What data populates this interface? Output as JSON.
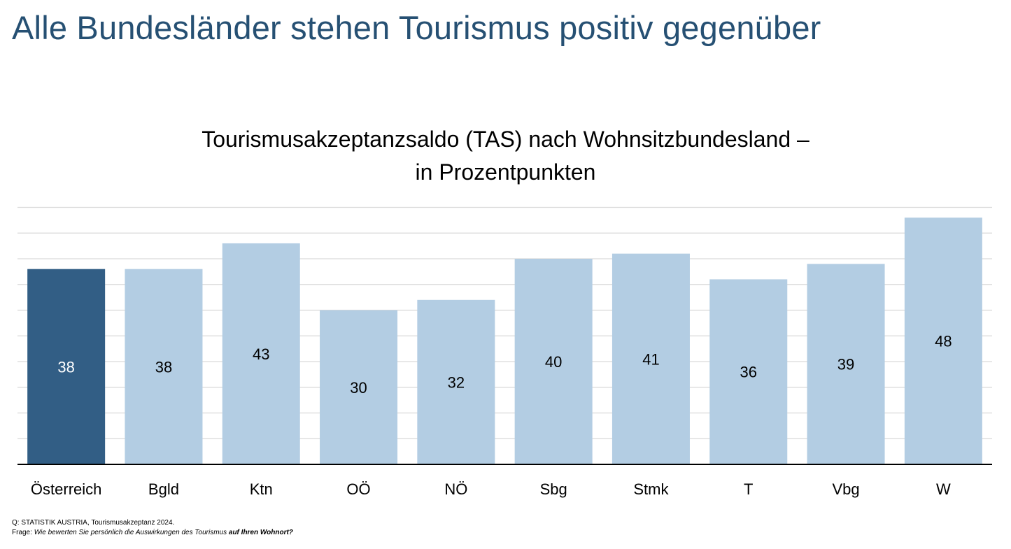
{
  "slide_title": "Alle Bundesländer stehen Tourismus positiv gegenüber",
  "footnote": {
    "source": "Q: STATISTIK AUSTRIA, Tourismusakzeptanz 2024.",
    "question_prefix": "Frage: ",
    "question_text": "Wie bewerten Sie persönlich die Auswirkungen des Tourismus ",
    "question_emphasis": "auf Ihren Wohnort?"
  },
  "colors": {
    "title": "#265073",
    "highlight_bar": "#325E85",
    "bar": "#B3CDE3",
    "gridline": "#D9D9D9",
    "axis": "#000000"
  },
  "chart_data": {
    "type": "bar",
    "title_line1": "Tourismusakzeptanzsaldo (TAS) nach Wohnsitzbundesland –",
    "title_line2": "in Prozentpunkten",
    "categories": [
      "Österreich",
      "Bgld",
      "Ktn",
      "OÖ",
      "NÖ",
      "Sbg",
      "Stmk",
      "T",
      "Vbg",
      "W"
    ],
    "values": [
      38,
      38,
      43,
      30,
      32,
      40,
      41,
      36,
      39,
      48
    ],
    "highlight": "Österreich",
    "ylim": [
      0,
      50
    ],
    "grid": true,
    "axis_labels_visible": false
  }
}
